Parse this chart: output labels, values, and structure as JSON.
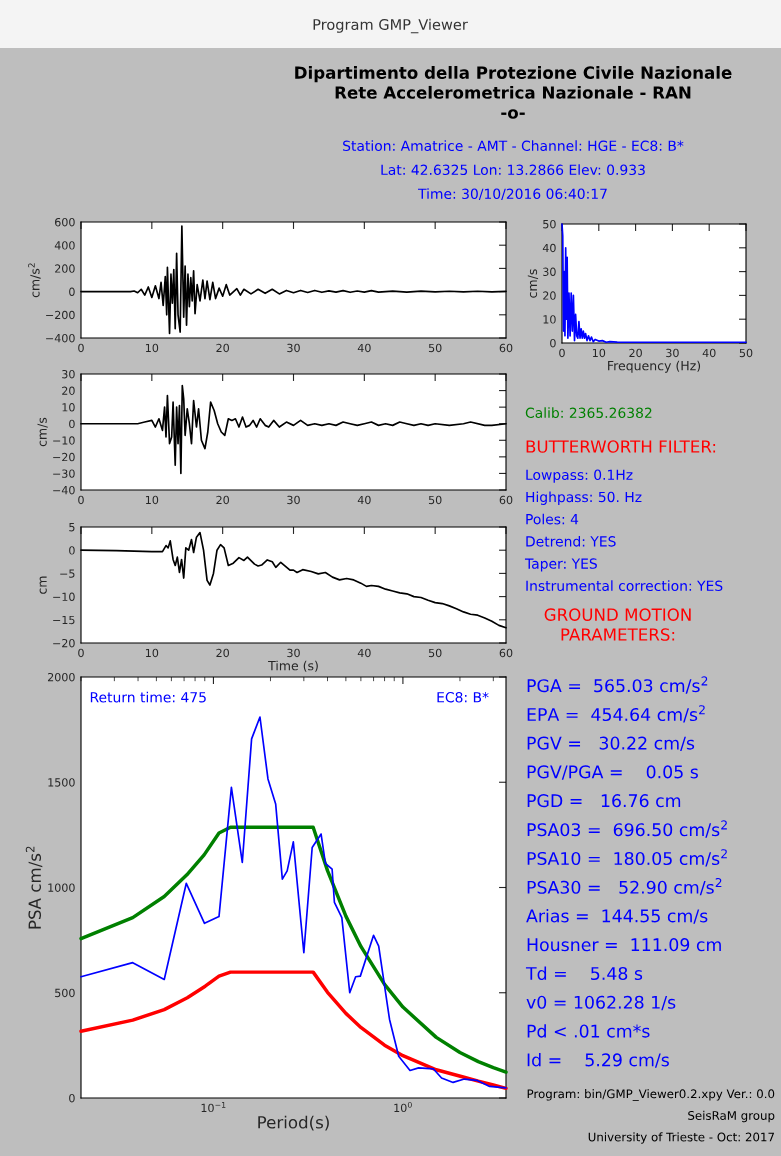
{
  "chart_data": [
    {
      "type": "line",
      "ylabel": "cm/s$^{2}$",
      "xlim": [
        0,
        60
      ],
      "xticks": [
        0,
        10,
        20,
        30,
        40,
        50,
        60
      ],
      "ylim": [
        -400,
        600
      ],
      "yticks": [
        -400,
        -200,
        0,
        200,
        400,
        600
      ],
      "grid": false,
      "legend": false,
      "marker": "none",
      "line_style": "solid",
      "x": [
        0,
        7,
        7.5,
        8,
        8.5,
        9,
        9.5,
        10,
        10.5,
        11,
        11.3,
        11.6,
        11.9,
        12.1,
        12.2,
        12.5,
        12.7,
        12.9,
        13.1,
        13.3,
        13.5,
        13.7,
        14.0,
        14.24,
        14.5,
        14.7,
        14.9,
        15.1,
        15.3,
        15.5,
        15.7,
        15.9,
        16.1,
        16.4,
        16.8,
        17.2,
        17.5,
        17.8,
        18.2,
        18.6,
        19,
        19.5,
        20,
        20.5,
        21,
        22,
        22.5,
        23,
        24,
        25,
        26,
        27,
        28,
        29,
        30,
        31,
        32,
        33,
        34,
        35,
        36,
        37,
        38,
        39,
        40,
        41,
        42,
        44,
        46,
        48,
        50,
        52,
        54,
        56,
        58,
        60
      ],
      "series": [
        {
          "color": "#000000",
          "values": [
            0,
            0,
            5,
            -10,
            20,
            -30,
            40,
            -50,
            50,
            -60,
            80,
            -120,
            130,
            -200,
            210,
            -360,
            150,
            -100,
            190,
            -320,
            330,
            -200,
            -350,
            565,
            -220,
            220,
            -290,
            150,
            -130,
            120,
            -80,
            180,
            -190,
            60,
            -80,
            100,
            -60,
            90,
            -70,
            80,
            -60,
            30,
            -40,
            60,
            -30,
            25,
            -30,
            20,
            -20,
            20,
            -15,
            20,
            -20,
            10,
            -10,
            10,
            -8,
            10,
            -6,
            6,
            -5,
            8,
            -6,
            5,
            -5,
            8,
            -4,
            4,
            -4,
            4,
            -3,
            3,
            -3,
            3,
            -2,
            2
          ]
        }
      ]
    },
    {
      "type": "line",
      "ylabel": "cm/s",
      "xlabel": "Frequency (Hz)",
      "xlim": [
        0,
        50
      ],
      "xticks": [
        0,
        10,
        20,
        30,
        40,
        50
      ],
      "ylim": [
        0,
        50
      ],
      "yticks": [
        0,
        10,
        20,
        30,
        40,
        50
      ],
      "grid": false,
      "legend": false,
      "marker": "none",
      "line_style": "solid",
      "x": [
        0,
        0.2,
        0.4,
        0.6,
        0.8,
        1.0,
        1.2,
        1.4,
        1.6,
        1.9,
        2.2,
        2.5,
        2.8,
        3.1,
        3.4,
        3.7,
        4.0,
        4.3,
        4.6,
        4.9,
        5.2,
        5.5,
        5.8,
        6.1,
        6.4,
        6.8,
        7.2,
        7.6,
        8,
        8.5,
        9,
        10,
        11,
        12,
        13,
        15,
        17,
        20,
        30,
        40,
        50
      ],
      "series": [
        {
          "color": "#0000ff",
          "values": [
            50,
            45,
            5,
            30,
            3,
            40,
            10,
            36,
            2,
            21,
            3,
            21,
            5,
            20,
            1,
            12,
            3,
            2,
            9,
            2,
            6,
            2,
            5,
            2,
            4,
            1,
            3,
            1,
            2.5,
            0.5,
            1.5,
            0.8,
            1,
            0.3,
            0.6,
            0.4,
            0.3,
            0.3,
            0.3,
            0.3,
            0.3
          ]
        }
      ]
    },
    {
      "type": "line",
      "ylabel": "cm/s",
      "xlim": [
        0,
        60
      ],
      "xticks": [
        0,
        10,
        20,
        30,
        40,
        50,
        60
      ],
      "ylim": [
        -40,
        30
      ],
      "yticks": [
        -40,
        -30,
        -20,
        -10,
        0,
        10,
        20,
        30
      ],
      "grid": false,
      "legend": false,
      "marker": "none",
      "line_style": "solid",
      "x": [
        0,
        8,
        9,
        10,
        10.5,
        11,
        11.5,
        11.8,
        12,
        12.2,
        12.5,
        12.8,
        13,
        13.3,
        13.5,
        13.7,
        13.9,
        14.1,
        14.3,
        14.5,
        14.7,
        15,
        15.3,
        15.6,
        15.9,
        16.3,
        16.6,
        17,
        17.5,
        17.9,
        18.3,
        18.8,
        19.3,
        19.8,
        20.3,
        20.8,
        21.3,
        21.8,
        22.3,
        22.8,
        23.3,
        23.8,
        24.3,
        24.8,
        25.3,
        26,
        26.5,
        27.2,
        28,
        29,
        30,
        31,
        32,
        33,
        34,
        35,
        36,
        37,
        38,
        39,
        40,
        41,
        42,
        43,
        44,
        45,
        46,
        47,
        48,
        49,
        50,
        52,
        54,
        55,
        57,
        58,
        60
      ],
      "series": [
        {
          "color": "#000000",
          "values": [
            0,
            0,
            1,
            2,
            -2,
            3,
            -4,
            10,
            -8,
            17,
            -12,
            -8,
            13,
            -25,
            10,
            -12,
            11,
            -30,
            23,
            15,
            -7,
            9,
            0,
            -12,
            14,
            -2,
            9,
            -10,
            -15,
            -5,
            13,
            8,
            0,
            -5,
            -7,
            3,
            2,
            3,
            -2,
            4,
            -2,
            -1,
            2,
            -2,
            3,
            -1,
            -2,
            2,
            -2,
            1,
            -1,
            2,
            -1,
            0,
            -1,
            0,
            -1,
            1,
            0,
            -1,
            0,
            1,
            -1,
            0,
            -1,
            1,
            0,
            -1,
            0,
            -1,
            0,
            -1,
            0,
            1,
            -1,
            -1,
            0
          ]
        }
      ]
    },
    {
      "type": "line",
      "ylabel": "cm",
      "xlabel": "Time (s)",
      "xlim": [
        0,
        60
      ],
      "xticks": [
        0,
        10,
        20,
        30,
        40,
        50,
        60
      ],
      "ylim": [
        -20,
        5
      ],
      "yticks": [
        -20,
        -15,
        -10,
        -5,
        0,
        5
      ],
      "grid": false,
      "legend": false,
      "marker": "none",
      "line_style": "solid",
      "x": [
        0,
        5,
        10,
        11.5,
        12,
        12.3,
        12.6,
        13,
        13.3,
        13.6,
        13.9,
        14.2,
        14.5,
        14.8,
        15.2,
        15.6,
        15.9,
        16.3,
        16.8,
        17.3,
        17.8,
        18.2,
        18.7,
        19.2,
        19.7,
        20.2,
        20.8,
        21.5,
        22.3,
        23,
        23.5,
        24.5,
        25,
        25.5,
        26.3,
        27,
        27.5,
        28.2,
        29.5,
        30,
        30.5,
        31.3,
        32.5,
        33.5,
        34.5,
        35.5,
        36.5,
        37.5,
        38.5,
        39.5,
        40.3,
        41,
        42,
        43,
        44,
        45,
        46,
        47,
        48,
        49,
        50,
        51,
        52,
        53,
        54,
        55,
        56,
        57,
        58,
        59,
        60
      ],
      "series": [
        {
          "color": "#000000",
          "values": [
            0,
            -0.1,
            -0.3,
            -0.3,
            1,
            0.5,
            2,
            -2,
            -3.3,
            -1.5,
            -4.8,
            -2,
            -6,
            0.5,
            0,
            2.3,
            -0.5,
            2.8,
            3.8,
            0,
            -6.5,
            -7.5,
            -5,
            0,
            1.2,
            0.5,
            -3.3,
            -2.8,
            -1.6,
            -2.2,
            -1.5,
            -3,
            -3.4,
            -3.2,
            -2.1,
            -2.5,
            -3.7,
            -2.6,
            -4.3,
            -4.3,
            -4.8,
            -4.2,
            -4.6,
            -5.1,
            -4.8,
            -5.8,
            -6.4,
            -6.1,
            -6.4,
            -7.1,
            -7.8,
            -7.6,
            -7.8,
            -8.4,
            -8.8,
            -9.2,
            -9.4,
            -10,
            -10.2,
            -10.8,
            -11.3,
            -11.5,
            -12,
            -12.6,
            -13.3,
            -13.8,
            -14,
            -14.6,
            -15.3,
            -16.2,
            -16.7
          ]
        }
      ]
    },
    {
      "type": "line",
      "ylabel": "PSA cm/s$^{2}$",
      "xlabel": "Period(s)",
      "log": "x",
      "xlim": [
        0.02,
        3.5
      ],
      "xticks": [
        {
          "value": 0.1,
          "label": "10$^{−1}$"
        },
        {
          "value": 1,
          "label": "10$^{0}$"
        }
      ],
      "ylim": [
        0,
        2000
      ],
      "yticks": [
        0,
        500,
        1000,
        1500,
        2000
      ],
      "grid": false,
      "legend": false,
      "marker": "none",
      "line_style": "solid",
      "annotations": [
        "Return time: 475",
        "EC8: B*"
      ],
      "series": [
        {
          "color": "#008000",
          "x": [
            0.02,
            0.0375,
            0.055,
            0.0724,
            0.0893,
            0.107,
            0.123,
            0.336,
            0.4,
            0.5,
            0.6,
            0.8,
            1.0,
            1.5,
            2,
            2.5,
            3,
            3.5
          ],
          "values": [
            757,
            857,
            957,
            1060,
            1155,
            1259,
            1286,
            1286,
            1080,
            864,
            720,
            540,
            432,
            288,
            216,
            173,
            144,
            123
          ]
        },
        {
          "color": "#ff0000",
          "x": [
            0.02,
            0.0375,
            0.055,
            0.0728,
            0.0905,
            0.107,
            0.123,
            0.336,
            0.4,
            0.5,
            0.6,
            0.8,
            1.0,
            1.5,
            2.08,
            2.5,
            3,
            3.5
          ],
          "values": [
            317,
            370,
            420,
            476,
            531,
            579,
            598,
            598,
            502,
            402,
            335,
            251,
            201,
            134,
            100,
            80,
            62,
            46
          ]
        },
        {
          "color": "#0000ff",
          "x": [
            0.02,
            0.0375,
            0.055,
            0.0719,
            0.0897,
            0.107,
            0.1244,
            0.142,
            0.159,
            0.176,
            0.194,
            0.213,
            0.231,
            0.245,
            0.264,
            0.3,
            0.332,
            0.37,
            0.39,
            0.423,
            0.435,
            0.476,
            0.524,
            0.563,
            0.596,
            0.7,
            0.745,
            0.85,
            0.95,
            1.09,
            1.21,
            1.45,
            1.6,
            1.84,
            2.11,
            2.45,
            2.87,
            3.5
          ],
          "values": [
            576,
            643,
            563,
            1020,
            830,
            862,
            1476,
            1119,
            1706,
            1810,
            1516,
            1397,
            1040,
            1079,
            1217,
            690,
            1190,
            1254,
            1114,
            1087,
            929,
            857,
            500,
            576,
            579,
            773,
            722,
            373,
            198,
            131,
            143,
            138,
            95,
            74,
            90,
            84,
            55,
            48
          ]
        }
      ]
    },
    {
      "type": "other",
      "title": "Program GMP_Viewer"
    },
    {
      "type": "other",
      "title": "Dipartimento della Protezione Civile Nazionale\nRete Accelerometrica Nazionale - RAN\n-o-",
      "annotations": [
        "Station: Amatrice - AMT - Channel: HGE - EC8: B*",
        "Lat: 42.6325 Lon: 13.2866 Elev: 0.933",
        "Time: 30/10/2016 06:40:17"
      ]
    },
    {
      "type": "other",
      "annotations": [
        "Calib: 2365.26382"
      ]
    },
    {
      "type": "other",
      "title": "BUTTERWORTH FILTER:",
      "annotations": [
        "Lowpass: 0.1Hz",
        "Highpass: 50. Hz",
        "Poles: 4",
        "Detrend: YES",
        "Taper: YES",
        "Instrumental correction: YES"
      ]
    },
    {
      "type": "other",
      "title": "GROUND MOTION\nPARAMETERS:",
      "annotations": [
        "PGA =  565.03 cm/s$^{2}$",
        "EPA =  454.64 cm/s$^{2}$",
        "PGV =   30.22 cm/s",
        "PGV/PGA =    0.05 s",
        "PGD =   16.76 cm",
        "PSA03 =  696.50 cm/s$^{2}$",
        "PSA10 =  180.05 cm/s$^{2}$",
        "PSA30 =   52.90 cm/s$^{2}$",
        "Arias =  144.55 cm/s",
        "Housner =  111.09 cm",
        "Td =    5.48 s",
        "v0 = 1062.28 1/s",
        "Pd < .01 cm*s",
        "Id =    5.29 cm/s"
      ]
    },
    {
      "type": "other",
      "annotations": [
        "Program: bin/GMP_Viewer0.2.xpy Ver.: 0.0",
        "SeisRaM group",
        "University of Trieste - Oct: 2017"
      ]
    }
  ]
}
